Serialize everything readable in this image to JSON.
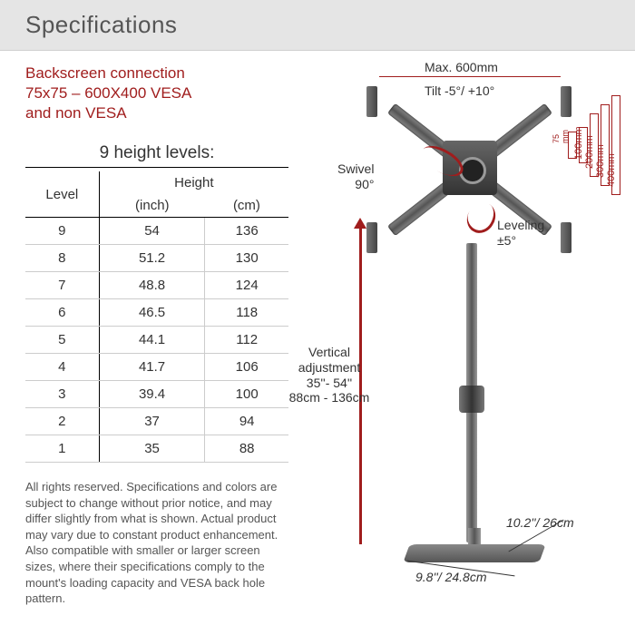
{
  "header": {
    "title": "Specifications"
  },
  "backscreen": {
    "line1": "Backscreen connection",
    "line2": "75x75 – 600X400 VESA",
    "line3": "and non VESA"
  },
  "table": {
    "title": "9 height levels:",
    "col_level": "Level",
    "col_height": "Height",
    "col_inch": "(inch)",
    "col_cm": "(cm)",
    "rows": [
      {
        "level": "9",
        "inch": "54",
        "cm": "136"
      },
      {
        "level": "8",
        "inch": "51.2",
        "cm": "130"
      },
      {
        "level": "7",
        "inch": "48.8",
        "cm": "124"
      },
      {
        "level": "6",
        "inch": "46.5",
        "cm": "118"
      },
      {
        "level": "5",
        "inch": "44.1",
        "cm": "112"
      },
      {
        "level": "4",
        "inch": "41.7",
        "cm": "106"
      },
      {
        "level": "3",
        "inch": "39.4",
        "cm": "100"
      },
      {
        "level": "2",
        "inch": "37",
        "cm": "94"
      },
      {
        "level": "1",
        "inch": "35",
        "cm": "88"
      }
    ]
  },
  "disclaimer": "All rights reserved. Specifications and colors are subject to change without prior notice, and may differ slightly from what is shown. Actual product may vary due to constant product enhancement. Also compatible with smaller or larger screen sizes, where their specifications comply to the mount's loading capacity and VESA back hole pattern.",
  "diagram": {
    "max_width": "Max. 600mm",
    "tilt": "Tilt -5°/ +10°",
    "swivel": "Swivel\n90°",
    "leveling": "Leveling\n±5°",
    "vertical": "Vertical\nadjustment\n35''- 54''\n88cm - 136cm",
    "vesa": {
      "d75": "75\nmm",
      "d100": "100mm",
      "d200": "200mm",
      "d300": "300mm",
      "d400": "400mm"
    },
    "base_depth": "10.2''/ 26cm",
    "base_width": "9.8''/ 24.8cm"
  },
  "colors": {
    "accent": "#a01d1d",
    "header_bg": "#e5e5e5",
    "text": "#333333",
    "muted": "#555555"
  }
}
